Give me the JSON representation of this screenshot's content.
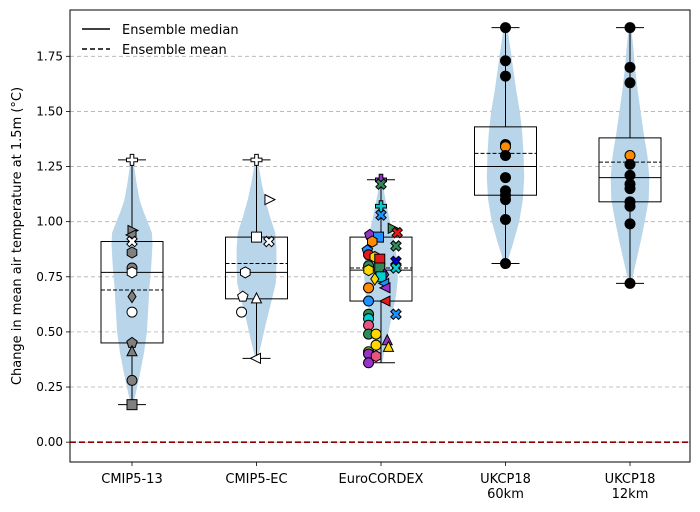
{
  "chart_data": {
    "type": "box-violin",
    "ylabel": "Change in mean air temperature at 1.5m (°C)",
    "xlabel": "",
    "ylim": [
      -0.09,
      1.96
    ],
    "yticks": [
      0.0,
      0.25,
      0.5,
      0.75,
      1.0,
      1.25,
      1.5,
      1.75
    ],
    "ytick_labels": [
      "0.00",
      "0.25",
      "0.50",
      "0.75",
      "1.00",
      "1.25",
      "1.50",
      "1.75"
    ],
    "grid": "horizontal dashed",
    "zero_line": {
      "y": 0,
      "color": "#8b0000",
      "style": "dashed"
    },
    "legend": {
      "position": "top-left",
      "entries": [
        {
          "label": "Ensemble median",
          "style": "solid"
        },
        {
          "label": "Ensemble mean",
          "style": "dashed"
        }
      ]
    },
    "categories": [
      {
        "label_lines": [
          "CMIP5-13"
        ]
      },
      {
        "label_lines": [
          "CMIP5-EC"
        ]
      },
      {
        "label_lines": [
          "EuroCORDEX"
        ]
      },
      {
        "label_lines": [
          "UKCP18",
          "60km"
        ]
      },
      {
        "label_lines": [
          "UKCP18",
          "12km"
        ]
      }
    ],
    "violin_color": "#b9d5ea",
    "groups": [
      {
        "min": 0.17,
        "q1": 0.45,
        "median": 0.77,
        "mean": 0.69,
        "q3": 0.91,
        "max": 1.28,
        "violin": [
          [
            0.17,
            0.02
          ],
          [
            0.22,
            0.06
          ],
          [
            0.3,
            0.12
          ],
          [
            0.4,
            0.19
          ],
          [
            0.5,
            0.24
          ],
          [
            0.6,
            0.26
          ],
          [
            0.7,
            0.28
          ],
          [
            0.8,
            0.31
          ],
          [
            0.9,
            0.33
          ],
          [
            0.95,
            0.32
          ],
          [
            1.0,
            0.25
          ],
          [
            1.05,
            0.18
          ],
          [
            1.1,
            0.12
          ],
          [
            1.18,
            0.07
          ],
          [
            1.28,
            0.02
          ]
        ],
        "points": [
          {
            "y": 1.28,
            "m": "plus",
            "c": "#ffffff"
          },
          {
            "y": 0.96,
            "m": "tri_right",
            "c": "#808080"
          },
          {
            "y": 0.94,
            "m": "tri_left",
            "c": "#808080"
          },
          {
            "y": 0.91,
            "m": "x",
            "c": "#ffffff"
          },
          {
            "y": 0.86,
            "m": "hexagon",
            "c": "#808080"
          },
          {
            "y": 0.79,
            "m": "circle",
            "c": "#808080"
          },
          {
            "y": 0.77,
            "m": "hexagon",
            "c": "#ffffff"
          },
          {
            "y": 0.66,
            "m": "diamond",
            "c": "#808080"
          },
          {
            "y": 0.59,
            "m": "circle",
            "c": "#ffffff"
          },
          {
            "y": 0.45,
            "m": "pentagon",
            "c": "#808080"
          },
          {
            "y": 0.41,
            "m": "tri_up",
            "c": "#808080"
          },
          {
            "y": 0.28,
            "m": "circle",
            "c": "#808080"
          },
          {
            "y": 0.17,
            "m": "square",
            "c": "#808080"
          }
        ]
      },
      {
        "min": 0.38,
        "q1": 0.65,
        "median": 0.77,
        "mean": 0.81,
        "q3": 0.93,
        "max": 1.28,
        "violin": [
          [
            0.38,
            0.02
          ],
          [
            0.45,
            0.08
          ],
          [
            0.55,
            0.16
          ],
          [
            0.65,
            0.25
          ],
          [
            0.72,
            0.31
          ],
          [
            0.8,
            0.32
          ],
          [
            0.88,
            0.32
          ],
          [
            0.95,
            0.3
          ],
          [
            1.02,
            0.22
          ],
          [
            1.1,
            0.14
          ],
          [
            1.18,
            0.08
          ],
          [
            1.28,
            0.02
          ]
        ],
        "points": [
          {
            "y": 1.28,
            "m": "plus",
            "c": "#ffffff"
          },
          {
            "y": 1.1,
            "m": "tri_right",
            "c": "#ffffff",
            "dx": 0.1
          },
          {
            "y": 0.93,
            "m": "square",
            "c": "#ffffff"
          },
          {
            "y": 0.91,
            "m": "x",
            "c": "#ffffff",
            "dx": 0.1
          },
          {
            "y": 0.77,
            "m": "hexagon",
            "c": "#ffffff",
            "dx": -0.09
          },
          {
            "y": 0.66,
            "m": "pentagon",
            "c": "#ffffff",
            "dx": -0.11
          },
          {
            "y": 0.65,
            "m": "tri_up",
            "c": "#ffffff"
          },
          {
            "y": 0.59,
            "m": "circle",
            "c": "#ffffff",
            "dx": -0.12
          },
          {
            "y": 0.38,
            "m": "tri_left",
            "c": "#ffffff"
          }
        ]
      },
      {
        "min": 0.36,
        "q1": 0.64,
        "median": 0.78,
        "mean": 0.79,
        "q3": 0.93,
        "max": 1.19,
        "violin": [
          [
            0.36,
            0.02
          ],
          [
            0.42,
            0.06
          ],
          [
            0.5,
            0.12
          ],
          [
            0.58,
            0.18
          ],
          [
            0.66,
            0.24
          ],
          [
            0.74,
            0.27
          ],
          [
            0.82,
            0.26
          ],
          [
            0.9,
            0.22
          ],
          [
            0.98,
            0.16
          ],
          [
            1.06,
            0.1
          ],
          [
            1.12,
            0.06
          ],
          [
            1.19,
            0.02
          ]
        ],
        "points": [
          {
            "y": 1.19,
            "m": "plus",
            "c": "#9932cc"
          },
          {
            "y": 1.17,
            "m": "x",
            "c": "#2e8b57"
          },
          {
            "y": 1.07,
            "m": "plus",
            "c": "#00ced1"
          },
          {
            "y": 1.03,
            "m": "x",
            "c": "#1e90ff"
          },
          {
            "y": 0.97,
            "m": "tri_right",
            "c": "#2e8b57",
            "dx": 0.09
          },
          {
            "y": 0.95,
            "m": "x",
            "c": "#e31a1c",
            "dx": 0.13
          },
          {
            "y": 0.94,
            "m": "pentagon",
            "c": "#9932cc",
            "dx": -0.09
          },
          {
            "y": 0.93,
            "m": "square",
            "c": "#1e90ff",
            "dx": -0.02
          },
          {
            "y": 0.91,
            "m": "hexagon",
            "c": "#ff8c00",
            "dx": -0.07
          },
          {
            "y": 0.89,
            "m": "x",
            "c": "#2e8b57",
            "dx": 0.12
          },
          {
            "y": 0.87,
            "m": "pentagon",
            "c": "#1e90ff",
            "dx": -0.11
          },
          {
            "y": 0.85,
            "m": "circle",
            "c": "#e31a1c",
            "dx": -0.1
          },
          {
            "y": 0.84,
            "m": "hexagon",
            "c": "#ffd700",
            "dx": -0.05
          },
          {
            "y": 0.83,
            "m": "square",
            "c": "#e31a1c",
            "dx": -0.01
          },
          {
            "y": 0.82,
            "m": "x",
            "c": "#0000cd",
            "dx": 0.12
          },
          {
            "y": 0.8,
            "m": "circle",
            "c": "#2e8b57",
            "dx": -0.1
          },
          {
            "y": 0.79,
            "m": "x",
            "c": "#00ced1",
            "dx": 0.12
          },
          {
            "y": 0.79,
            "m": "square",
            "c": "#2e8b57",
            "dx": -0.01
          },
          {
            "y": 0.78,
            "m": "hexagon",
            "c": "#ffd700",
            "dx": -0.1
          },
          {
            "y": 0.76,
            "m": "diamond",
            "c": "#9932cc",
            "dx": 0.03
          },
          {
            "y": 0.75,
            "m": "square",
            "c": "#00ced1",
            "dx": 0.0
          },
          {
            "y": 0.74,
            "m": "diamond",
            "c": "#ffd700",
            "dx": -0.05
          },
          {
            "y": 0.72,
            "m": "tri_left",
            "c": "#1e90ff",
            "dx": 0.03
          },
          {
            "y": 0.7,
            "m": "circle",
            "c": "#ff8c00",
            "dx": -0.1
          },
          {
            "y": 0.7,
            "m": "tri_left",
            "c": "#9932cc",
            "dx": 0.04
          },
          {
            "y": 0.64,
            "m": "circle",
            "c": "#1e90ff",
            "dx": -0.1
          },
          {
            "y": 0.64,
            "m": "tri_left",
            "c": "#e31a1c",
            "dx": 0.04
          },
          {
            "y": 0.58,
            "m": "x",
            "c": "#1e90ff",
            "dx": 0.12
          },
          {
            "y": 0.58,
            "m": "circle",
            "c": "#2e8b57",
            "dx": -0.1
          },
          {
            "y": 0.56,
            "m": "circle",
            "c": "#00ced1",
            "dx": -0.1
          },
          {
            "y": 0.53,
            "m": "circle",
            "c": "#e75480",
            "dx": -0.1
          },
          {
            "y": 0.49,
            "m": "circle",
            "c": "#2e8b57",
            "dx": -0.1
          },
          {
            "y": 0.49,
            "m": "circle",
            "c": "#ffd700",
            "dx": -0.04
          },
          {
            "y": 0.46,
            "m": "tri_up",
            "c": "#9932cc",
            "dx": 0.05
          },
          {
            "y": 0.44,
            "m": "circle",
            "c": "#ffd700",
            "dx": -0.04
          },
          {
            "y": 0.43,
            "m": "tri_up",
            "c": "#ffd700",
            "dx": 0.06
          },
          {
            "y": 0.41,
            "m": "circle",
            "c": "#9acd32",
            "dx": -0.1
          },
          {
            "y": 0.4,
            "m": "circle",
            "c": "#9932cc",
            "dx": -0.1
          },
          {
            "y": 0.39,
            "m": "hexagon",
            "c": "#e75480",
            "dx": -0.04
          },
          {
            "y": 0.36,
            "m": "circle",
            "c": "#9932cc",
            "dx": -0.1
          }
        ]
      },
      {
        "min": 0.81,
        "q1": 1.12,
        "median": 1.25,
        "mean": 1.31,
        "q3": 1.43,
        "max": 1.88,
        "violin": [
          [
            0.81,
            0.02
          ],
          [
            0.9,
            0.12
          ],
          [
            1.0,
            0.22
          ],
          [
            1.1,
            0.28
          ],
          [
            1.2,
            0.3
          ],
          [
            1.3,
            0.29
          ],
          [
            1.4,
            0.27
          ],
          [
            1.5,
            0.23
          ],
          [
            1.6,
            0.17
          ],
          [
            1.7,
            0.12
          ],
          [
            1.8,
            0.07
          ],
          [
            1.88,
            0.03
          ]
        ],
        "points": [
          {
            "y": 1.88,
            "m": "circle",
            "c": "#000000"
          },
          {
            "y": 1.73,
            "m": "circle",
            "c": "#000000"
          },
          {
            "y": 1.66,
            "m": "circle",
            "c": "#000000"
          },
          {
            "y": 1.35,
            "m": "circle",
            "c": "#000000"
          },
          {
            "y": 1.34,
            "m": "circle",
            "c": "#ff8c00"
          },
          {
            "y": 1.3,
            "m": "circle",
            "c": "#000000"
          },
          {
            "y": 1.2,
            "m": "circle",
            "c": "#000000"
          },
          {
            "y": 1.14,
            "m": "circle",
            "c": "#000000"
          },
          {
            "y": 1.12,
            "m": "circle",
            "c": "#000000"
          },
          {
            "y": 1.1,
            "m": "circle",
            "c": "#000000"
          },
          {
            "y": 1.01,
            "m": "circle",
            "c": "#000000"
          },
          {
            "y": 0.81,
            "m": "circle",
            "c": "#000000"
          }
        ]
      },
      {
        "min": 0.72,
        "q1": 1.09,
        "median": 1.2,
        "mean": 1.27,
        "q3": 1.38,
        "max": 1.88,
        "violin": [
          [
            0.72,
            0.02
          ],
          [
            0.82,
            0.1
          ],
          [
            0.92,
            0.18
          ],
          [
            1.02,
            0.25
          ],
          [
            1.1,
            0.3
          ],
          [
            1.2,
            0.31
          ],
          [
            1.3,
            0.28
          ],
          [
            1.4,
            0.22
          ],
          [
            1.5,
            0.17
          ],
          [
            1.6,
            0.12
          ],
          [
            1.7,
            0.08
          ],
          [
            1.8,
            0.05
          ],
          [
            1.88,
            0.02
          ]
        ],
        "points": [
          {
            "y": 1.88,
            "m": "circle",
            "c": "#000000"
          },
          {
            "y": 1.7,
            "m": "circle",
            "c": "#000000"
          },
          {
            "y": 1.63,
            "m": "circle",
            "c": "#000000"
          },
          {
            "y": 1.3,
            "m": "circle",
            "c": "#ff8c00"
          },
          {
            "y": 1.26,
            "m": "circle",
            "c": "#000000"
          },
          {
            "y": 1.21,
            "m": "circle",
            "c": "#000000"
          },
          {
            "y": 1.17,
            "m": "circle",
            "c": "#000000"
          },
          {
            "y": 1.15,
            "m": "circle",
            "c": "#000000"
          },
          {
            "y": 1.09,
            "m": "circle",
            "c": "#000000"
          },
          {
            "y": 1.07,
            "m": "circle",
            "c": "#000000"
          },
          {
            "y": 0.99,
            "m": "circle",
            "c": "#000000"
          },
          {
            "y": 0.72,
            "m": "circle",
            "c": "#000000"
          }
        ]
      }
    ]
  }
}
